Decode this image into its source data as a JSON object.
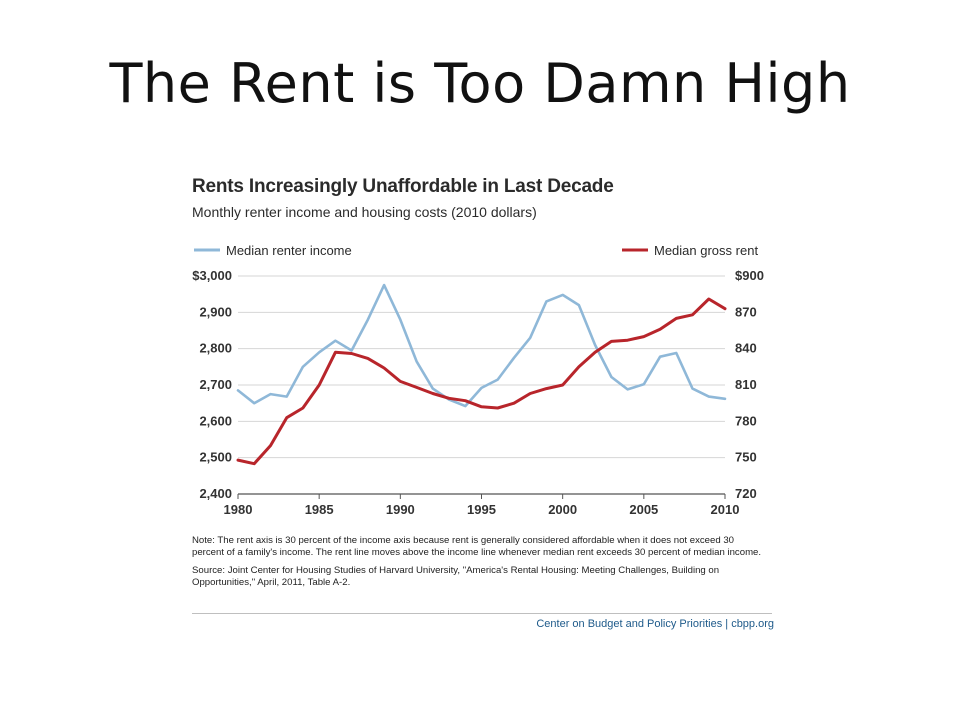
{
  "slide": {
    "title": "The Rent is Too Damn High"
  },
  "chart_data": {
    "type": "line",
    "title": "Rents Increasingly Unaffordable in Last Decade",
    "subtitle": "Monthly renter income and housing costs (2010 dollars)",
    "x": [
      1980,
      1981,
      1982,
      1983,
      1984,
      1985,
      1986,
      1987,
      1988,
      1989,
      1990,
      1991,
      1992,
      1993,
      1994,
      1995,
      1996,
      1997,
      1998,
      1999,
      2000,
      2001,
      2002,
      2003,
      2004,
      2005,
      2006,
      2007,
      2008,
      2009,
      2010
    ],
    "x_ticks": [
      1980,
      1985,
      1990,
      1995,
      2000,
      2005,
      2010
    ],
    "x_tick_labels": [
      "1980",
      "1985",
      "1990",
      "1995",
      "2000",
      "2005",
      "2010"
    ],
    "y_left": {
      "range": [
        2400,
        3000
      ],
      "ticks": [
        2400,
        2500,
        2600,
        2700,
        2800,
        2900,
        3000
      ],
      "tick_labels": [
        "2,400",
        "2,500",
        "2,600",
        "2,700",
        "2,800",
        "2,900",
        "$3,000"
      ]
    },
    "y_right": {
      "range": [
        720,
        900
      ],
      "ticks": [
        720,
        750,
        780,
        810,
        840,
        870,
        900
      ],
      "tick_labels": [
        "720",
        "750",
        "780",
        "810",
        "840",
        "870",
        "$900"
      ]
    },
    "grid": true,
    "series": [
      {
        "name": "Median renter income",
        "axis": "left",
        "color": "#8fb8d8",
        "values": [
          2685,
          2650,
          2675,
          2668,
          2750,
          2790,
          2822,
          2795,
          2880,
          2975,
          2880,
          2765,
          2690,
          2660,
          2642,
          2692,
          2715,
          2775,
          2830,
          2930,
          2948,
          2920,
          2810,
          2722,
          2688,
          2702,
          2778,
          2788,
          2690,
          2668,
          2662
        ]
      },
      {
        "name": "Median gross rent",
        "axis": "right",
        "color": "#b8252b",
        "values": [
          748,
          745,
          760,
          783,
          791,
          810,
          837,
          836,
          832,
          824,
          813,
          808,
          803,
          799,
          797,
          792,
          791,
          795,
          803,
          807,
          810,
          825,
          837,
          846,
          847,
          850,
          856,
          865,
          868,
          881,
          873
        ]
      }
    ],
    "legend": {
      "position": "top",
      "left_entry": "Median renter income",
      "right_entry": "Median gross rent"
    }
  },
  "notes": {
    "note": "Note: The rent axis is 30 percent of the income axis because rent is generally considered affordable when it does not exceed 30 percent of a family's income.  The rent line moves above the income line whenever median rent exceeds 30 percent of median income.",
    "source": "Source: Joint Center for Housing Studies of Harvard University, \"America's Rental Housing: Meeting Challenges, Building on Opportunities,\" April, 2011, Table A-2."
  },
  "credit": "Center on Budget and Policy Priorities | cbpp.org"
}
